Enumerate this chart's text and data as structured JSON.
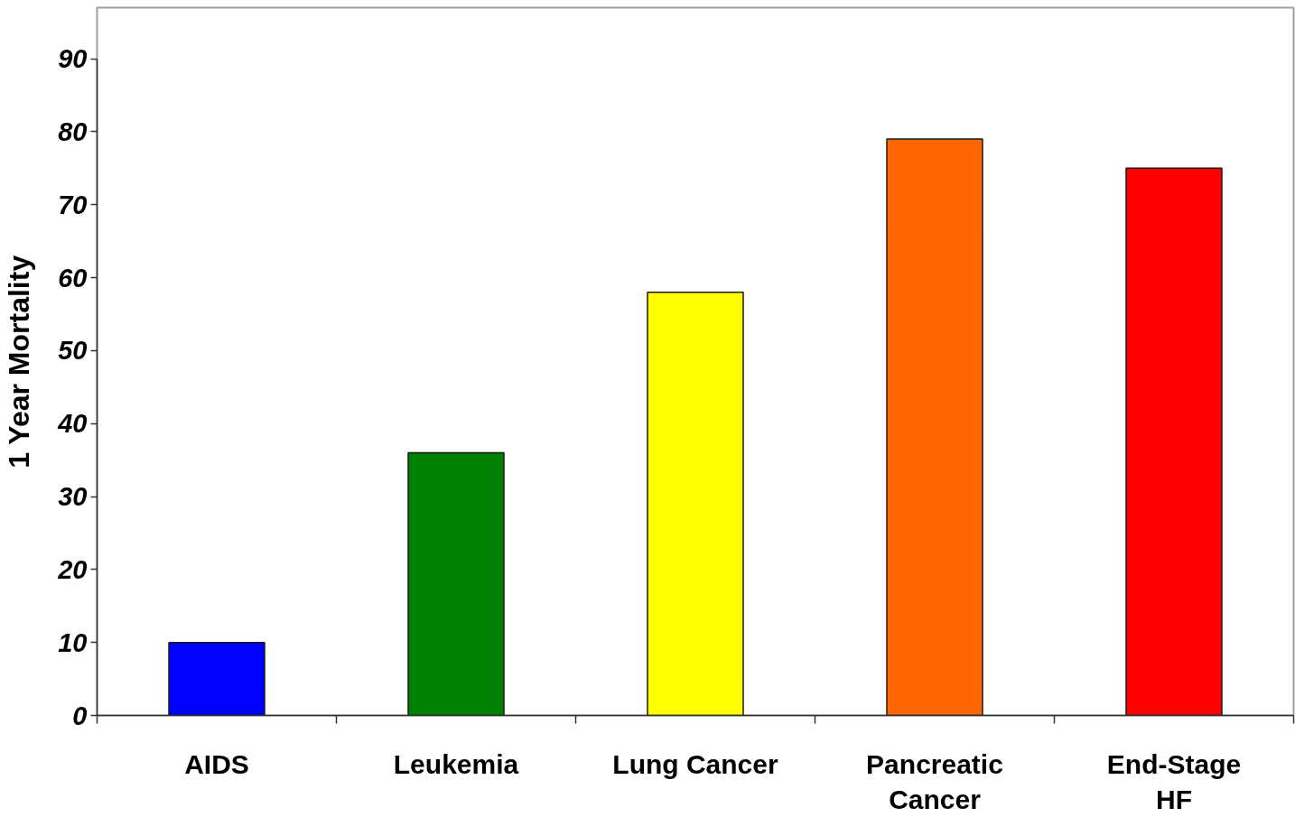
{
  "chart_data": {
    "type": "bar",
    "ylabel": "1 Year Mortality",
    "categories": [
      "AIDS",
      "Leukemia",
      "Lung Cancer",
      "Pancreatic Cancer",
      "End-Stage HF"
    ],
    "values": [
      10,
      36,
      58,
      79,
      75
    ],
    "colors": [
      "#0000ff",
      "#008000",
      "#ffff00",
      "#ff6600",
      "#ff0000"
    ],
    "ylim": [
      0,
      97
    ],
    "yticks": [
      0,
      10,
      20,
      30,
      40,
      50,
      60,
      70,
      80,
      90
    ],
    "grid": false
  }
}
